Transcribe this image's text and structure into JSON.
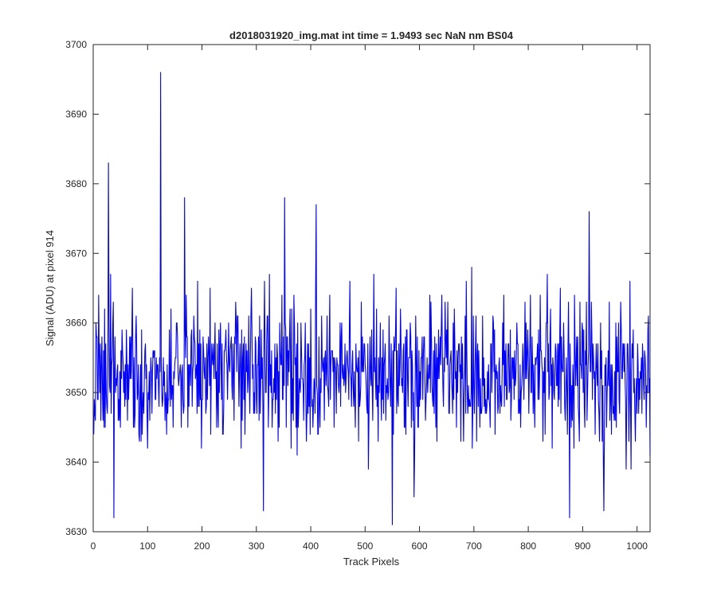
{
  "chart_data": {
    "type": "line",
    "title": "d2018031920_img.mat int time = 1.9493 sec  NaN nm BS04",
    "xlabel": "Track Pixels",
    "ylabel": "Signal (ADU) at pixel 914",
    "xlim": [
      0,
      1024
    ],
    "ylim": [
      3630,
      3700
    ],
    "xticks": [
      "0",
      "100",
      "200",
      "300",
      "400",
      "500",
      "600",
      "700",
      "800",
      "900",
      "1000"
    ],
    "yticks": [
      "3630",
      "3640",
      "3650",
      "3660",
      "3670",
      "3680",
      "3690",
      "3700"
    ],
    "grid": false,
    "legend": "none",
    "line_color": "#0000ff",
    "series": [
      {
        "x_start": 1,
        "x_step": 1,
        "count": 1024,
        "noise_mean": 3653,
        "noise_range": [
          3633,
          3670
        ],
        "random_seed": 20180319,
        "peaks": [
          {
            "x": 124,
            "y": 3696
          },
          {
            "x": 28,
            "y": 3683
          },
          {
            "x": 168,
            "y": 3678
          },
          {
            "x": 352,
            "y": 3678
          },
          {
            "x": 410,
            "y": 3677
          },
          {
            "x": 912,
            "y": 3676
          },
          {
            "x": 38,
            "y": 3632
          },
          {
            "x": 550,
            "y": 3631
          },
          {
            "x": 876,
            "y": 3632
          },
          {
            "x": 313,
            "y": 3633
          },
          {
            "x": 939,
            "y": 3633
          }
        ]
      }
    ]
  }
}
